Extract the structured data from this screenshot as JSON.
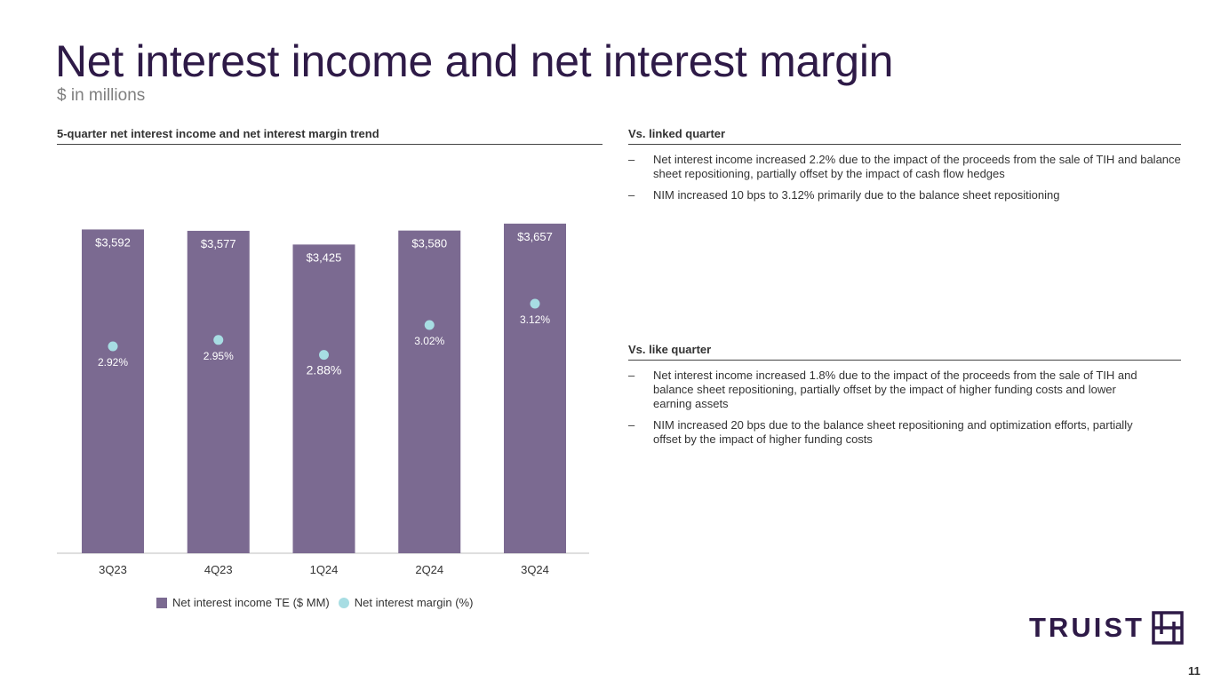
{
  "header": {
    "title": "Net interest income and net interest margin",
    "subtitle": "$ in millions"
  },
  "left": {
    "heading": "5-quarter net interest income and net interest margin trend"
  },
  "right": {
    "linked": {
      "heading": "Vs. linked quarter",
      "bullets": [
        "Net interest income increased 2.2% due to the impact of the proceeds from the sale of TIH and balance sheet repositioning, partially offset by the impact of cash flow hedges",
        "NIM increased 10 bps to 3.12% primarily due to the balance sheet repositioning"
      ]
    },
    "like": {
      "heading": "Vs. like quarter",
      "bullets": [
        "Net interest income increased 1.8% due to the impact of the proceeds from the sale of TIH and balance sheet repositioning, partially offset by the impact of higher funding costs and lower earning assets",
        "NIM increased 20 bps due to the balance sheet repositioning and optimization efforts, partially offset by the impact of higher funding costs"
      ]
    },
    "dash": "–"
  },
  "chart_data": {
    "type": "bar+scatter",
    "categories": [
      "3Q23",
      "4Q23",
      "1Q24",
      "2Q24",
      "3Q24"
    ],
    "series": [
      {
        "name": "Net interest income TE ($ MM)",
        "type": "bar",
        "values": [
          3592,
          3577,
          3425,
          3580,
          3657
        ],
        "labels": [
          "$3,592",
          "$3,577",
          "$3,425",
          "$3,580",
          "$3,657"
        ],
        "color": "#7b6a91"
      },
      {
        "name": "Net interest margin (%)",
        "type": "scatter",
        "values": [
          2.92,
          2.95,
          2.88,
          3.02,
          3.12
        ],
        "labels": [
          "2.92%",
          "2.95%",
          "2.88%",
          "3.02%",
          "3.12%"
        ],
        "color": "#a7dde3"
      }
    ],
    "legend": "bottom",
    "grid": false
  },
  "footer": {
    "logo": "TRUIST",
    "page": "11"
  }
}
